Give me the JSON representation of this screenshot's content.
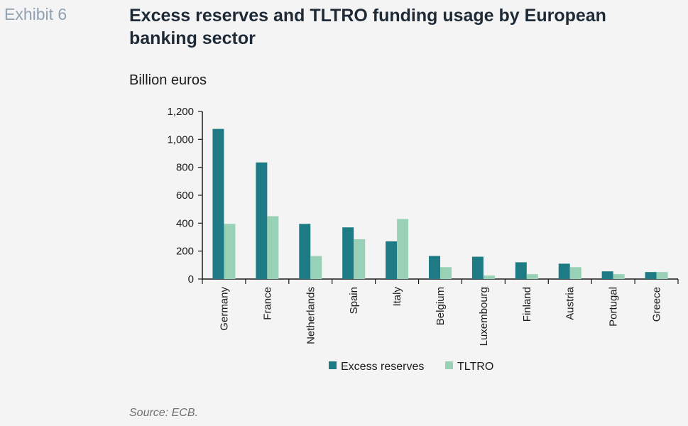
{
  "header": {
    "exhibit": "Exhibit 6",
    "title": "Excess reserves and TLTRO funding usage by European banking sector",
    "units": "Billion euros"
  },
  "footer": {
    "source": "Source: ECB."
  },
  "colors": {
    "excess_reserves": "#1e7b85",
    "tltro": "#98d1b6",
    "axis": "#1a1a1a",
    "background": "#f4f4f4"
  },
  "chart_data": {
    "type": "bar",
    "title": "Excess reserves and TLTRO funding usage by European banking sector",
    "ylabel": "Billion euros",
    "xlabel": "",
    "ylim": [
      0,
      1200
    ],
    "yticks": [
      0,
      200,
      400,
      600,
      800,
      1000,
      1200
    ],
    "ytick_labels": [
      "0",
      "200",
      "400",
      "600",
      "800",
      "1,000",
      "1,200"
    ],
    "grid": false,
    "legend_position": "bottom",
    "categories": [
      "Germany",
      "France",
      "Netherlands",
      "Spain",
      "Italy",
      "Belgium",
      "Luxembourg",
      "Finland",
      "Austria",
      "Portugal",
      "Greece"
    ],
    "series": [
      {
        "name": "Excess reserves",
        "values": [
          1075,
          835,
          395,
          370,
          270,
          165,
          160,
          120,
          110,
          55,
          50
        ]
      },
      {
        "name": "TLTRO",
        "values": [
          395,
          450,
          165,
          285,
          430,
          85,
          25,
          35,
          85,
          35,
          50
        ]
      }
    ]
  }
}
